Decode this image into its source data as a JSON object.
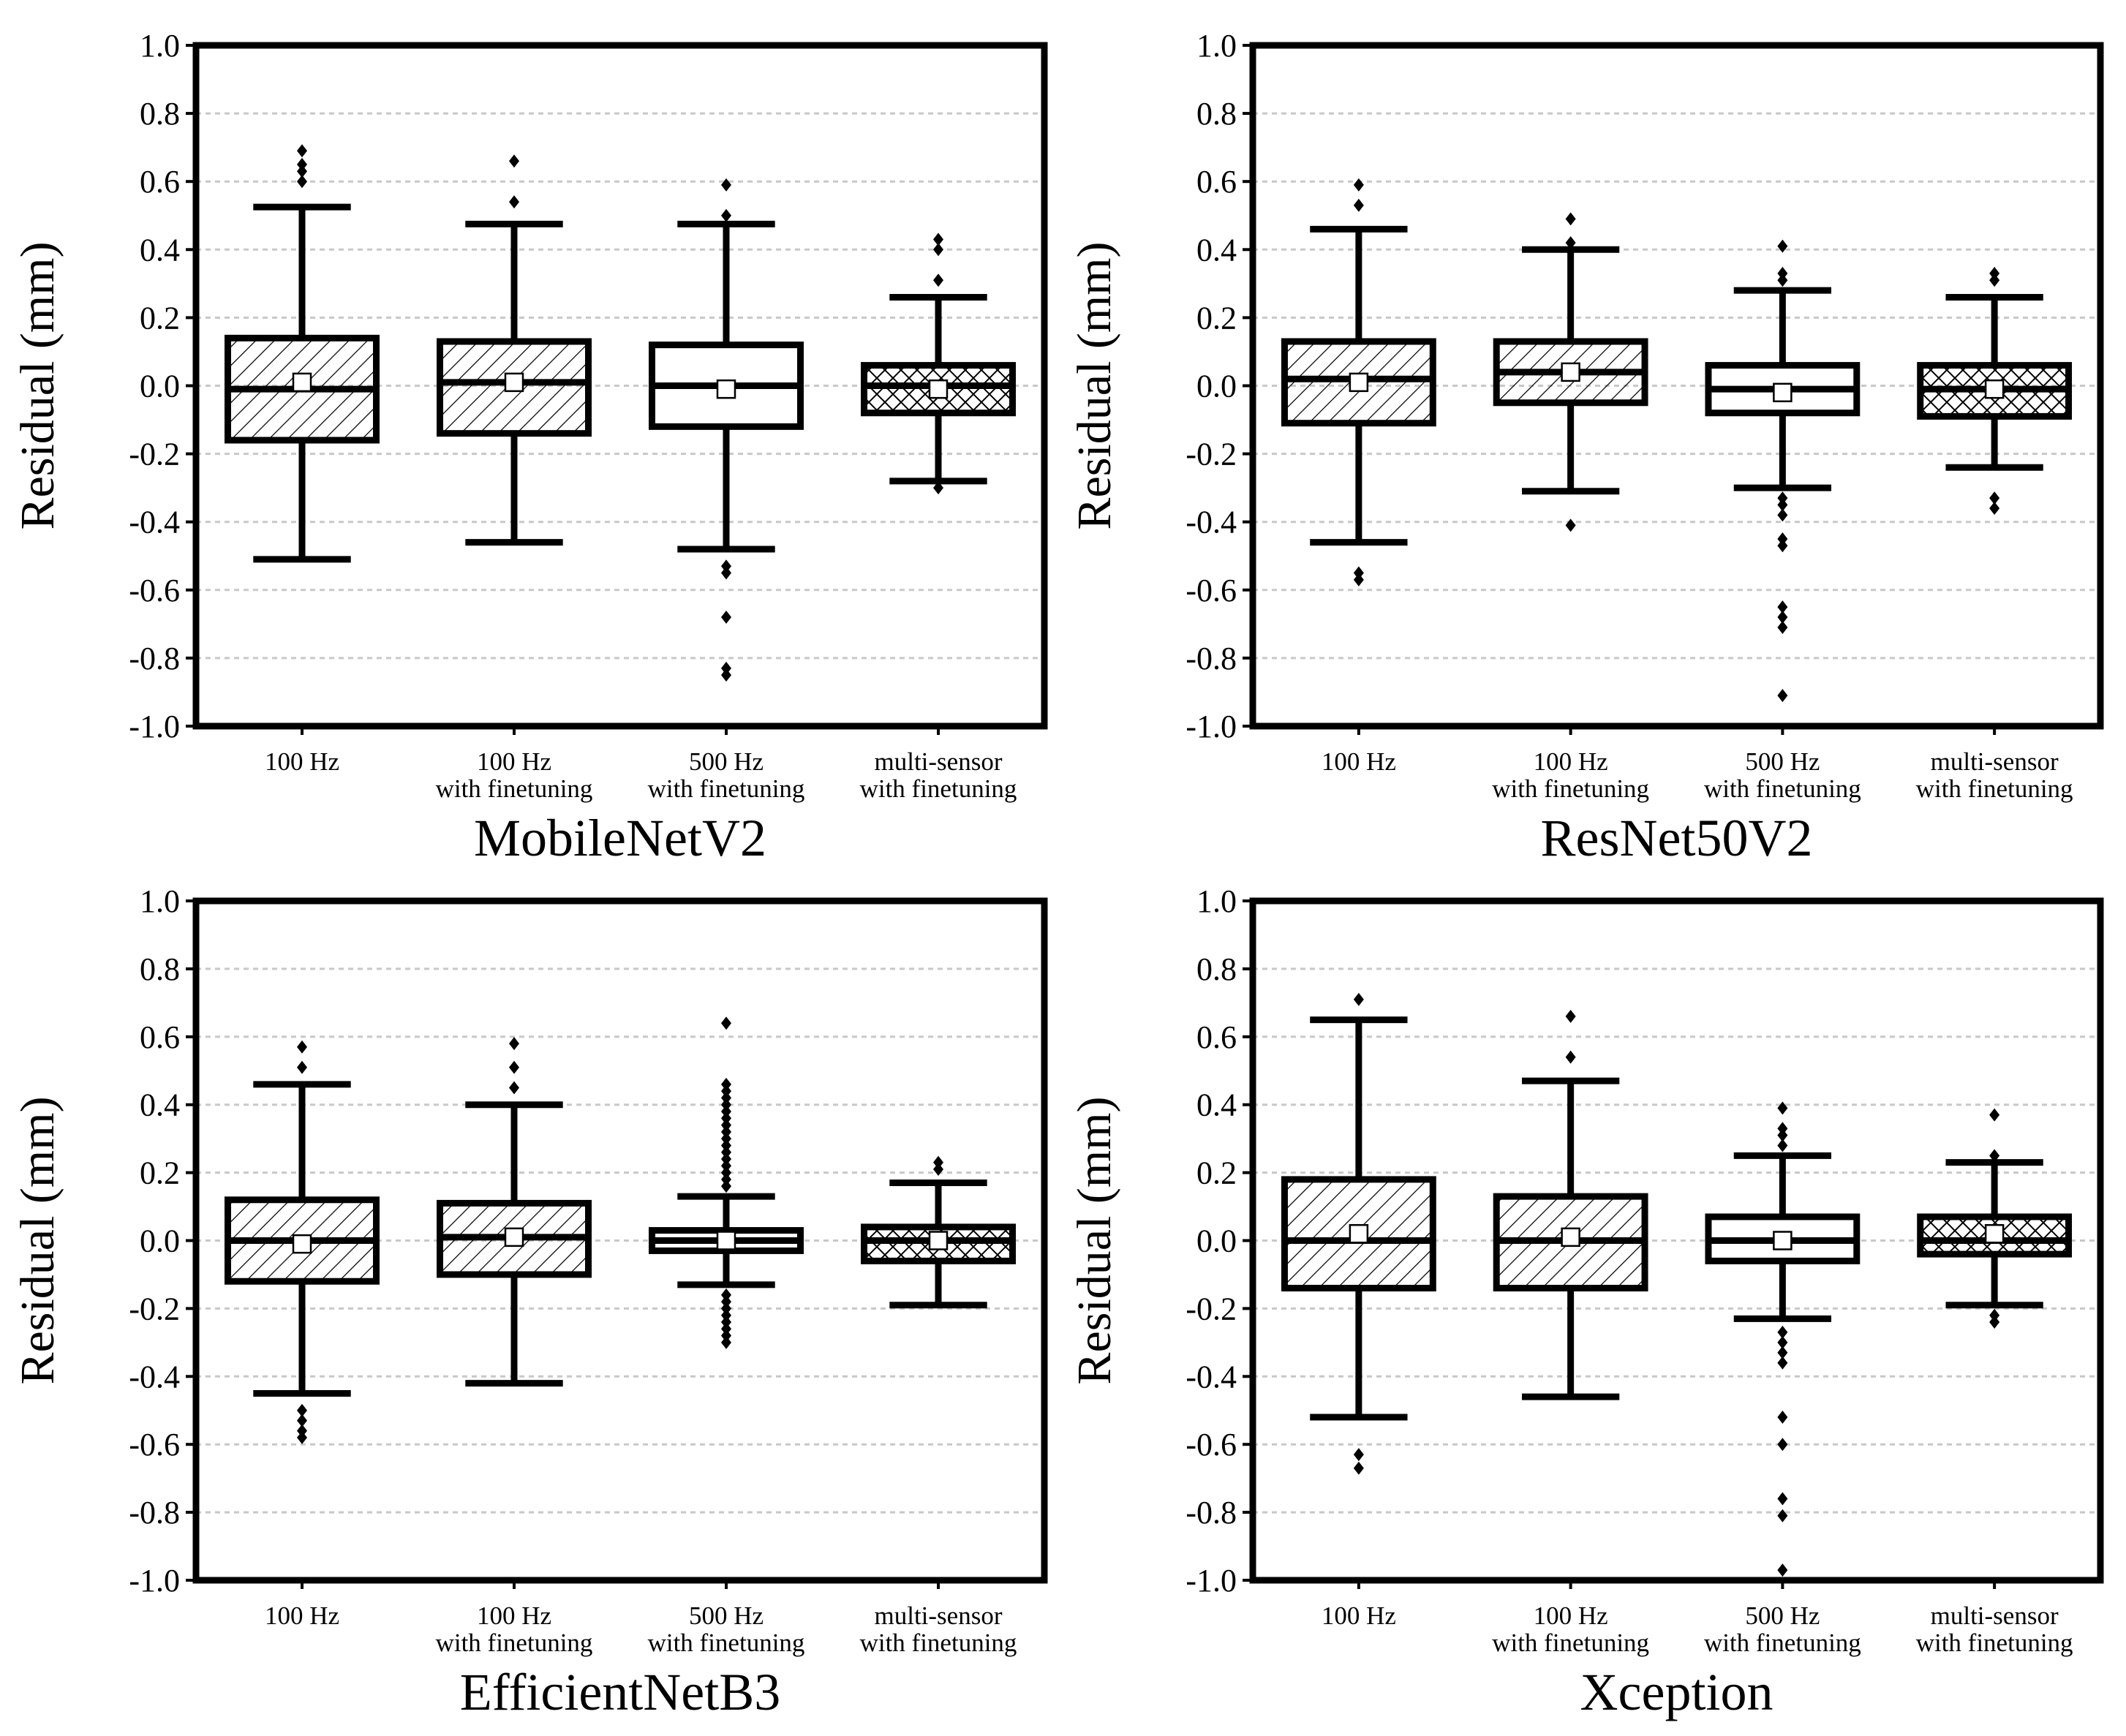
{
  "chart_data": [
    {
      "type": "box",
      "title": "MobileNetV2",
      "ylabel": "Residual (mm)",
      "ylim": [
        -1.0,
        1.0
      ],
      "yticks": [
        "1.0",
        "0.8",
        "0.6",
        "0.4",
        "0.2",
        "0.0",
        "-0.2",
        "-0.4",
        "-0.6",
        "-0.8",
        "-1.0"
      ],
      "grid": true,
      "categories": [
        [
          "100 Hz"
        ],
        [
          "100 Hz",
          "with finetuning"
        ],
        [
          "500 Hz",
          "with finetuning"
        ],
        [
          "multi-sensor",
          "with finetuning"
        ]
      ],
      "boxes": [
        {
          "fill": "diag",
          "whisker_low": -0.51,
          "q1": -0.16,
          "median": -0.01,
          "q3": 0.14,
          "whisker_high": 0.525,
          "mean": 0.01,
          "outliers": [
            0.69,
            0.65,
            0.63,
            0.6
          ]
        },
        {
          "fill": "diag",
          "whisker_low": -0.46,
          "q1": -0.14,
          "median": 0.01,
          "q3": 0.13,
          "whisker_high": 0.475,
          "mean": 0.01,
          "outliers": [
            0.66,
            0.54
          ]
        },
        {
          "fill": "none",
          "whisker_low": -0.48,
          "q1": -0.12,
          "median": 0.0,
          "q3": 0.12,
          "whisker_high": 0.475,
          "mean": -0.01,
          "outliers": [
            0.59,
            0.5,
            -0.53,
            -0.55,
            -0.68,
            -0.83,
            -0.85
          ]
        },
        {
          "fill": "cross",
          "whisker_low": -0.28,
          "q1": -0.08,
          "median": 0.0,
          "q3": 0.06,
          "whisker_high": 0.26,
          "mean": -0.01,
          "outliers": [
            0.43,
            0.4,
            0.31,
            -0.3
          ]
        }
      ]
    },
    {
      "type": "box",
      "title": "ResNet50V2",
      "ylabel": "Residual (mm)",
      "ylim": [
        -1.0,
        1.0
      ],
      "yticks": [
        "1.0",
        "0.8",
        "0.6",
        "0.4",
        "0.2",
        "0.0",
        "-0.2",
        "-0.4",
        "-0.6",
        "-0.8",
        "-1.0"
      ],
      "grid": true,
      "categories": [
        [
          "100 Hz"
        ],
        [
          "100 Hz",
          "with finetuning"
        ],
        [
          "500 Hz",
          "with finetuning"
        ],
        [
          "multi-sensor",
          "with finetuning"
        ]
      ],
      "boxes": [
        {
          "fill": "diag",
          "whisker_low": -0.46,
          "q1": -0.11,
          "median": 0.02,
          "q3": 0.13,
          "whisker_high": 0.46,
          "mean": 0.01,
          "outliers": [
            0.59,
            0.53,
            -0.55,
            -0.57
          ]
        },
        {
          "fill": "diag",
          "whisker_low": -0.31,
          "q1": -0.05,
          "median": 0.04,
          "q3": 0.13,
          "whisker_high": 0.4,
          "mean": 0.04,
          "outliers": [
            0.49,
            0.42,
            -0.41
          ]
        },
        {
          "fill": "none",
          "whisker_low": -0.3,
          "q1": -0.08,
          "median": -0.01,
          "q3": 0.06,
          "whisker_high": 0.28,
          "mean": -0.02,
          "outliers": [
            0.41,
            0.33,
            0.31,
            -0.33,
            -0.35,
            -0.38,
            -0.45,
            -0.47,
            -0.65,
            -0.68,
            -0.71,
            -0.91
          ]
        },
        {
          "fill": "cross",
          "whisker_low": -0.24,
          "q1": -0.09,
          "median": -0.01,
          "q3": 0.06,
          "whisker_high": 0.26,
          "mean": -0.01,
          "outliers": [
            0.33,
            0.31,
            -0.33,
            -0.36
          ]
        }
      ]
    },
    {
      "type": "box",
      "title": "EfficientNetB3",
      "ylabel": "Residual (mm)",
      "ylim": [
        -1.0,
        1.0
      ],
      "yticks": [
        "1.0",
        "0.8",
        "0.6",
        "0.4",
        "0.2",
        "0.0",
        "-0.2",
        "-0.4",
        "-0.6",
        "-0.8",
        "-1.0"
      ],
      "grid": true,
      "categories": [
        [
          "100 Hz"
        ],
        [
          "100 Hz",
          "with finetuning"
        ],
        [
          "500 Hz",
          "with finetuning"
        ],
        [
          "multi-sensor",
          "with finetuning"
        ]
      ],
      "boxes": [
        {
          "fill": "diag",
          "whisker_low": -0.45,
          "q1": -0.12,
          "median": 0.0,
          "q3": 0.12,
          "whisker_high": 0.46,
          "mean": -0.01,
          "outliers": [
            0.57,
            0.51,
            -0.5,
            -0.53,
            -0.56,
            -0.58
          ]
        },
        {
          "fill": "diag",
          "whisker_low": -0.42,
          "q1": -0.1,
          "median": 0.01,
          "q3": 0.11,
          "whisker_high": 0.4,
          "mean": 0.01,
          "outliers": [
            0.58,
            0.51,
            0.45
          ]
        },
        {
          "fill": "none",
          "whisker_low": -0.13,
          "q1": -0.03,
          "median": 0.0,
          "q3": 0.03,
          "whisker_high": 0.13,
          "mean": 0.0,
          "outliers": [
            0.64,
            0.46,
            0.44,
            0.42,
            0.4,
            0.38,
            0.36,
            0.34,
            0.32,
            0.3,
            0.28,
            0.26,
            0.24,
            0.22,
            0.2,
            0.18,
            0.16,
            -0.16,
            -0.18,
            -0.2,
            -0.22,
            -0.24,
            -0.26,
            -0.28,
            -0.3
          ]
        },
        {
          "fill": "cross",
          "whisker_low": -0.19,
          "q1": -0.06,
          "median": 0.0,
          "q3": 0.04,
          "whisker_high": 0.17,
          "mean": 0.0,
          "outliers": [
            0.23,
            0.21
          ]
        }
      ]
    },
    {
      "type": "box",
      "title": "Xception",
      "ylabel": "Residual (mm)",
      "ylim": [
        -1.0,
        1.0
      ],
      "yticks": [
        "1.0",
        "0.8",
        "0.6",
        "0.4",
        "0.2",
        "0.0",
        "-0.2",
        "-0.4",
        "-0.6",
        "-0.8",
        "-1.0"
      ],
      "grid": true,
      "categories": [
        [
          "100 Hz"
        ],
        [
          "100 Hz",
          "with finetuning"
        ],
        [
          "500 Hz",
          "with finetuning"
        ],
        [
          "multi-sensor",
          "with finetuning"
        ]
      ],
      "boxes": [
        {
          "fill": "diag",
          "whisker_low": -0.52,
          "q1": -0.14,
          "median": 0.0,
          "q3": 0.18,
          "whisker_high": 0.65,
          "mean": 0.02,
          "outliers": [
            0.71,
            -0.63,
            -0.67
          ]
        },
        {
          "fill": "diag",
          "whisker_low": -0.46,
          "q1": -0.14,
          "median": 0.0,
          "q3": 0.13,
          "whisker_high": 0.47,
          "mean": 0.01,
          "outliers": [
            0.66,
            0.54
          ]
        },
        {
          "fill": "none",
          "whisker_low": -0.23,
          "q1": -0.06,
          "median": 0.0,
          "q3": 0.07,
          "whisker_high": 0.25,
          "mean": 0.0,
          "outliers": [
            0.39,
            0.33,
            0.31,
            0.28,
            -0.27,
            -0.3,
            -0.33,
            -0.36,
            -0.52,
            -0.6,
            -0.76,
            -0.81,
            -0.97
          ]
        },
        {
          "fill": "cross",
          "whisker_low": -0.19,
          "q1": -0.04,
          "median": 0.0,
          "q3": 0.07,
          "whisker_high": 0.23,
          "mean": 0.02,
          "outliers": [
            0.37,
            0.25,
            -0.22,
            -0.24
          ]
        }
      ]
    }
  ]
}
